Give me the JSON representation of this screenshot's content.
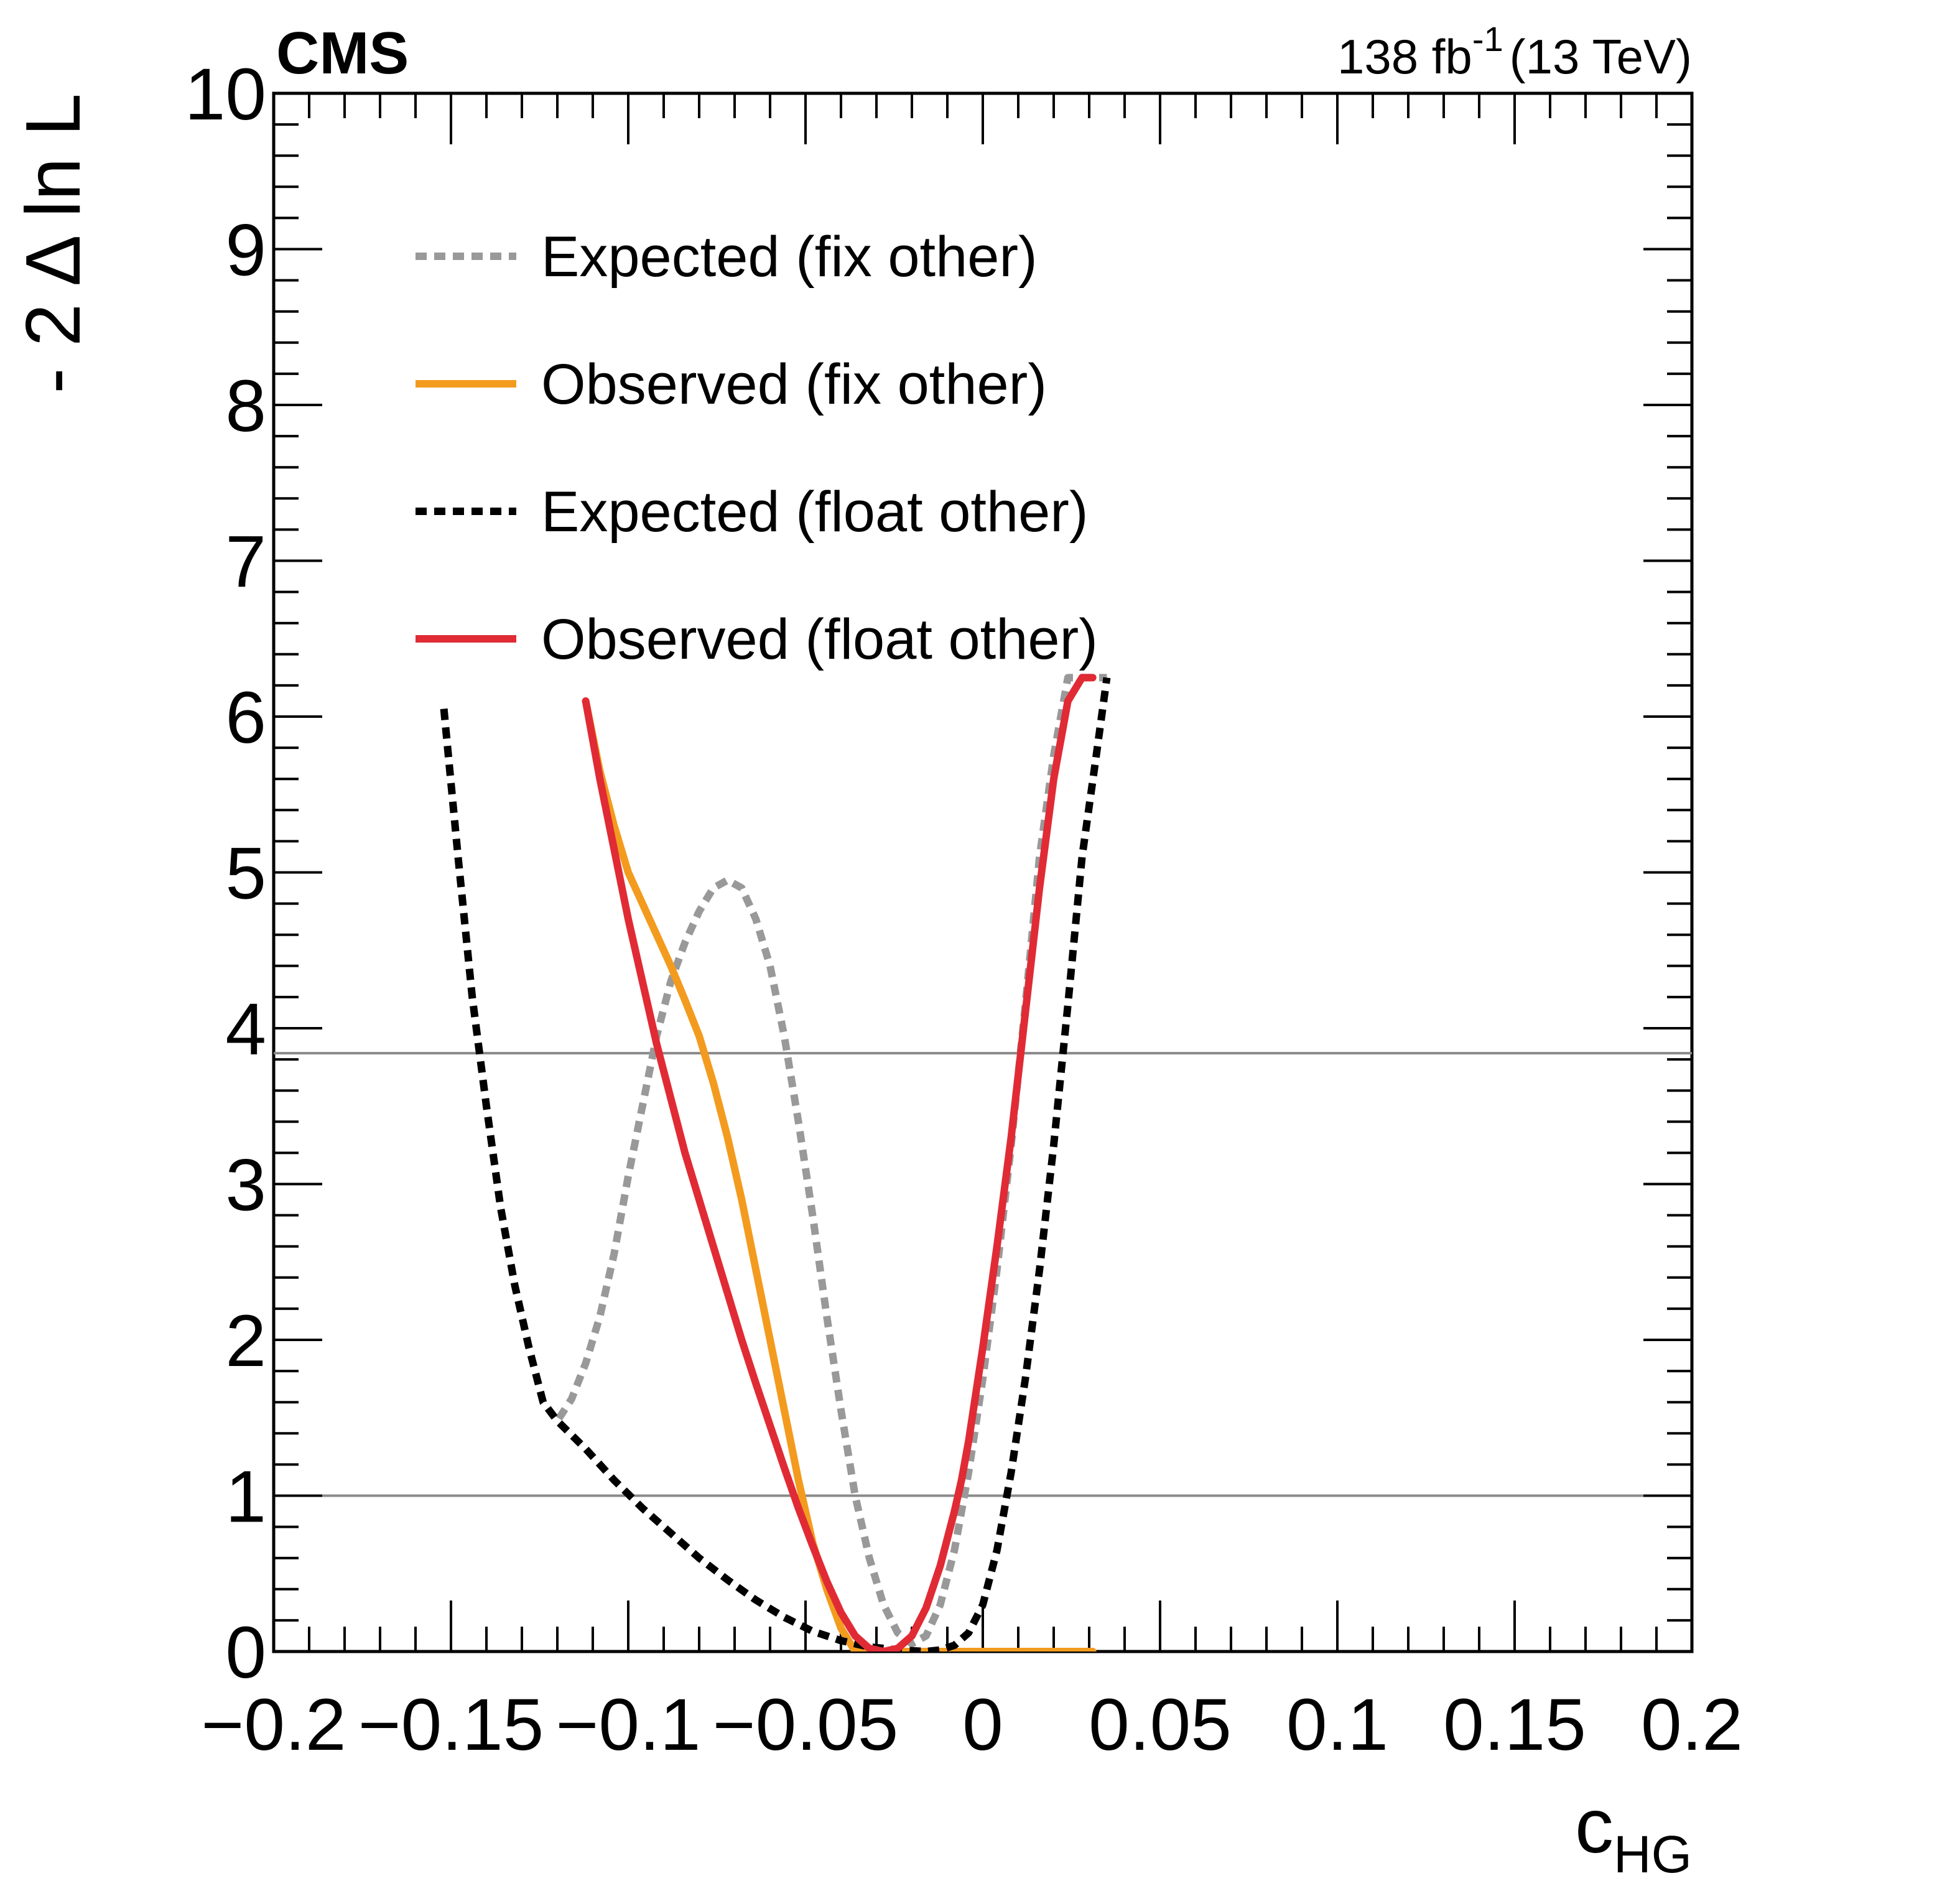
{
  "chart_data": {
    "type": "line",
    "experiment": "CMS",
    "lumi_label": {
      "value": "138 fb",
      "superscript": "-1",
      "energy": "(13 TeV)"
    },
    "ylabel": "- 2 Δ ln L",
    "xlabel": {
      "main": "c",
      "subscript": "HG"
    },
    "xlim": [
      -0.2,
      0.2
    ],
    "ylim": [
      0,
      10
    ],
    "x_ticks": [
      "−0.2",
      "−0.15",
      "−0.1",
      "−0.05",
      "0",
      "0.05",
      "0.1",
      "0.15",
      "0.2"
    ],
    "x_tick_values": [
      -0.2,
      -0.15,
      -0.1,
      -0.05,
      0,
      0.05,
      0.1,
      0.15,
      0.2
    ],
    "y_ticks": [
      "0",
      "1",
      "2",
      "3",
      "4",
      "5",
      "6",
      "7",
      "8",
      "9",
      "10"
    ],
    "y_tick_values": [
      0,
      1,
      2,
      3,
      4,
      5,
      6,
      7,
      8,
      9,
      10
    ],
    "reference_lines": [
      1,
      3.84
    ],
    "legend_position": "top-left",
    "series": [
      {
        "name": "Expected (fix other)",
        "color": "#999999",
        "style": "dotted",
        "x": [
          -0.152,
          -0.148,
          -0.144,
          -0.14,
          -0.136,
          -0.132,
          -0.128,
          -0.124,
          -0.12,
          -0.116,
          -0.112,
          -0.108,
          -0.104,
          -0.1,
          -0.096,
          -0.092,
          -0.088,
          -0.084,
          -0.08,
          -0.076,
          -0.072,
          -0.068,
          -0.064,
          -0.06,
          -0.056,
          -0.052,
          -0.048,
          -0.044,
          -0.04,
          -0.036,
          -0.032,
          -0.028,
          -0.024,
          -0.02,
          -0.016,
          -0.012,
          -0.008,
          -0.004,
          0,
          0.004,
          0.008,
          0.012,
          0.016,
          0.02,
          0.024,
          0.028,
          0.032,
          0.035
        ],
        "y": [
          6.05,
          5.1,
          4.2,
          3.5,
          2.85,
          2.35,
          1.95,
          1.6,
          1.48,
          1.62,
          1.85,
          2.15,
          2.55,
          3.05,
          3.5,
          3.95,
          4.3,
          4.55,
          4.75,
          4.9,
          4.95,
          4.9,
          4.7,
          4.4,
          3.95,
          3.4,
          2.8,
          2.15,
          1.55,
          1.0,
          0.6,
          0.3,
          0.12,
          0.05,
          0.1,
          0.3,
          0.65,
          1.15,
          1.75,
          2.45,
          3.25,
          4.15,
          5.1,
          5.75,
          6.25,
          6.25,
          6.25,
          6.25
        ]
      },
      {
        "name": "Observed (fix other)",
        "color": "#f39b1e",
        "style": "solid",
        "x": [
          -0.112,
          -0.108,
          -0.104,
          -0.1,
          -0.096,
          -0.092,
          -0.088,
          -0.084,
          -0.08,
          -0.076,
          -0.072,
          -0.068,
          -0.064,
          -0.06,
          -0.056,
          -0.052,
          -0.048,
          -0.044,
          -0.04,
          -0.036,
          -0.032,
          -0.028,
          -0.024,
          -0.02,
          -0.016,
          -0.012,
          -0.008,
          -0.004,
          0,
          0.004,
          0.008,
          0.012,
          0.016,
          0.02,
          0.024,
          0.028,
          0.031
        ],
        "y": [
          6.1,
          5.65,
          5.3,
          5.0,
          4.8,
          4.6,
          4.4,
          4.18,
          3.95,
          3.65,
          3.3,
          2.9,
          2.45,
          2.0,
          1.55,
          1.1,
          0.7,
          0.4,
          0.15,
          0.0,
          0.0,
          0.0,
          0.0,
          0.0,
          0.0,
          0.0,
          0.0,
          0.0,
          0.0,
          0.0,
          0.0,
          0.0,
          0.0,
          0.0,
          0.0,
          0.0,
          0.0
        ]
      },
      {
        "name": "Expected (float other)",
        "color": "#000000",
        "style": "dotted",
        "x": [
          -0.152,
          -0.148,
          -0.144,
          -0.14,
          -0.136,
          -0.132,
          -0.128,
          -0.124,
          -0.12,
          -0.112,
          -0.104,
          -0.096,
          -0.088,
          -0.08,
          -0.072,
          -0.064,
          -0.056,
          -0.048,
          -0.04,
          -0.032,
          -0.024,
          -0.016,
          -0.012,
          -0.008,
          -0.004,
          0,
          0.004,
          0.008,
          0.012,
          0.016,
          0.02,
          0.024,
          0.028,
          0.032,
          0.035
        ],
        "y": [
          6.05,
          5.1,
          4.2,
          3.5,
          2.85,
          2.35,
          1.95,
          1.6,
          1.48,
          1.3,
          1.1,
          0.92,
          0.76,
          0.6,
          0.46,
          0.33,
          0.22,
          0.13,
          0.07,
          0.03,
          0.01,
          0.0,
          0.01,
          0.04,
          0.12,
          0.3,
          0.65,
          1.15,
          1.75,
          2.45,
          3.25,
          4.15,
          5.1,
          5.75,
          6.25
        ]
      },
      {
        "name": "Observed (float other)",
        "color": "#e02b35",
        "style": "solid",
        "x": [
          -0.112,
          -0.108,
          -0.104,
          -0.1,
          -0.096,
          -0.092,
          -0.088,
          -0.084,
          -0.08,
          -0.076,
          -0.072,
          -0.068,
          -0.064,
          -0.06,
          -0.056,
          -0.052,
          -0.048,
          -0.044,
          -0.04,
          -0.036,
          -0.032,
          -0.028,
          -0.024,
          -0.02,
          -0.016,
          -0.012,
          -0.008,
          -0.006,
          -0.004,
          -0.002,
          0,
          0.004,
          0.008,
          0.012,
          0.016,
          0.02,
          0.024,
          0.028,
          0.031
        ],
        "y": [
          6.1,
          5.6,
          5.15,
          4.7,
          4.3,
          3.9,
          3.55,
          3.2,
          2.9,
          2.6,
          2.3,
          2.0,
          1.72,
          1.45,
          1.18,
          0.92,
          0.68,
          0.45,
          0.25,
          0.1,
          0.02,
          0.0,
          0.02,
          0.1,
          0.28,
          0.55,
          0.9,
          1.1,
          1.35,
          1.65,
          1.95,
          2.6,
          3.3,
          4.1,
          4.9,
          5.6,
          6.1,
          6.25,
          6.25
        ]
      }
    ]
  }
}
